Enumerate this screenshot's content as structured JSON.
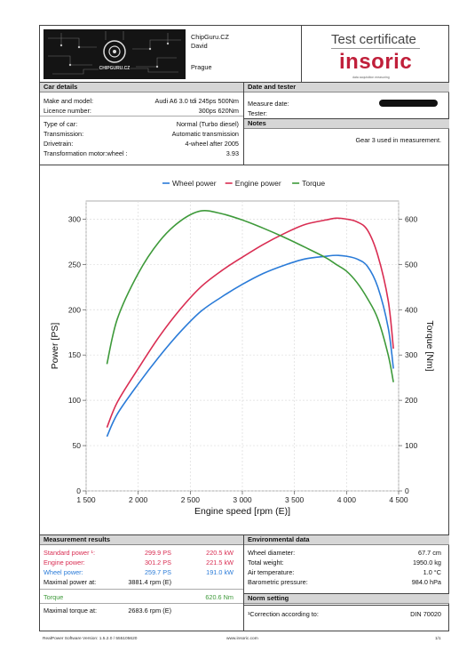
{
  "header": {
    "company": "ChipGuru.CZ",
    "person": "David",
    "city": "Prague",
    "cert_title": "Test certificate",
    "brand": "insoric",
    "brand_sub": "data acquisition measuring",
    "logo_text": "CHIPGURU.CZ"
  },
  "car_details": {
    "title": "Car details",
    "rows": [
      {
        "label": "Make and model:",
        "value": "Audi A6 3.0 tdi 245ps 500Nm"
      },
      {
        "label": "Licence number:",
        "value": "300ps 620Nm"
      },
      {
        "label": "Type of car:",
        "value": "Normal (Turbo diesel)"
      },
      {
        "label": "Transmission:",
        "value": "Automatic transmission"
      },
      {
        "label": "Drivetrain:",
        "value": "4-wheel after 2005"
      },
      {
        "label": "Transformation motor:wheel :",
        "value": "3.93"
      }
    ]
  },
  "date_tester": {
    "title": "Date and tester",
    "measure_label": "Measure date:",
    "tester_label": "Tester:"
  },
  "notes": {
    "title": "Notes",
    "text": "Gear 3 used in measurement."
  },
  "chart_data": {
    "type": "line",
    "xlabel": "Engine speed [rpm (E)]",
    "ylabel_left": "Power [PS]",
    "ylabel_right": "Torque [Nm]",
    "xlim": [
      1500,
      4500
    ],
    "ylim_left": [
      0,
      320
    ],
    "ylim_right": [
      0,
      640
    ],
    "x_ticks": [
      1500,
      2000,
      2500,
      3000,
      3500,
      4000,
      4500
    ],
    "x_tick_labels": [
      "1 500",
      "2 000",
      "2 500",
      "3 000",
      "3 500",
      "4 000",
      "4 500"
    ],
    "y_left_ticks": [
      0,
      50,
      100,
      150,
      200,
      250,
      300
    ],
    "y_right_ticks": [
      0,
      100,
      200,
      300,
      400,
      500,
      600
    ],
    "grid": true,
    "legend_position": "top",
    "series": [
      {
        "name": "Wheel power",
        "axis": "left",
        "color": "#2a7bd8",
        "x": [
          1700,
          1800,
          2000,
          2200,
          2400,
          2600,
          2800,
          3000,
          3200,
          3400,
          3600,
          3800,
          3900,
          4000,
          4100,
          4200,
          4300,
          4400,
          4450
        ],
        "y": [
          60,
          85,
          118,
          148,
          175,
          198,
          214,
          228,
          240,
          249,
          256,
          259,
          260,
          259,
          256,
          248,
          225,
          180,
          135
        ]
      },
      {
        "name": "Engine power",
        "axis": "left",
        "color": "#d92d52",
        "x": [
          1700,
          1800,
          2000,
          2200,
          2400,
          2600,
          2800,
          3000,
          3200,
          3400,
          3600,
          3800,
          3900,
          4000,
          4100,
          4200,
          4300,
          4400,
          4450
        ],
        "y": [
          70,
          98,
          135,
          170,
          200,
          225,
          243,
          258,
          272,
          284,
          294,
          299,
          301,
          300,
          297,
          288,
          260,
          210,
          157
        ]
      },
      {
        "name": "Torque",
        "axis": "right",
        "color": "#3e9a3a",
        "x": [
          1700,
          1800,
          2000,
          2200,
          2400,
          2600,
          2800,
          3000,
          3200,
          3400,
          3600,
          3800,
          3900,
          4000,
          4100,
          4200,
          4300,
          4400,
          4450
        ],
        "y": [
          280,
          380,
          480,
          550,
          595,
          618,
          612,
          598,
          580,
          560,
          538,
          515,
          500,
          485,
          460,
          425,
          380,
          300,
          240
        ]
      }
    ]
  },
  "measurement_results": {
    "title": "Measurement results",
    "rows": [
      {
        "label": "Standard power ¹:",
        "v1": "299.9 PS",
        "v2": "220.5 kW",
        "color": "#d92d52"
      },
      {
        "label": "Engine power:",
        "v1": "301.2 PS",
        "v2": "221.5 kW",
        "color": "#d92d52"
      },
      {
        "label": "Wheel power:",
        "v1": "259.7 PS",
        "v2": "191.0 kW",
        "color": "#2a7bd8"
      },
      {
        "label": "Maximal power at:",
        "v1": "3881.4 rpm (E)",
        "v2": "",
        "color": "#111111"
      },
      {
        "label": "Torque",
        "v1": "",
        "v2": "620.6 Nm",
        "color": "#3e9a3a"
      },
      {
        "label": "Maximal torque at:",
        "v1": "2683.6 rpm (E)",
        "v2": "",
        "color": "#111111"
      }
    ]
  },
  "environmental": {
    "title": "Environmental data",
    "rows": [
      {
        "label": "Wheel diameter:",
        "value": "67.7 cm"
      },
      {
        "label": "Total weight:",
        "value": "1950.0 kg"
      },
      {
        "label": "Air temperature:",
        "value": "1.0 °C"
      },
      {
        "label": "Barometric pressure:",
        "value": "984.0 hPa"
      }
    ]
  },
  "norm": {
    "title": "Norm setting",
    "label": "¹Correction according to:",
    "value": "DIN 70020"
  },
  "footer": {
    "software": "RealPower Software Version: 1.5.2.0 / 555105620",
    "url": "www.insoric.com",
    "page": "1/1"
  }
}
